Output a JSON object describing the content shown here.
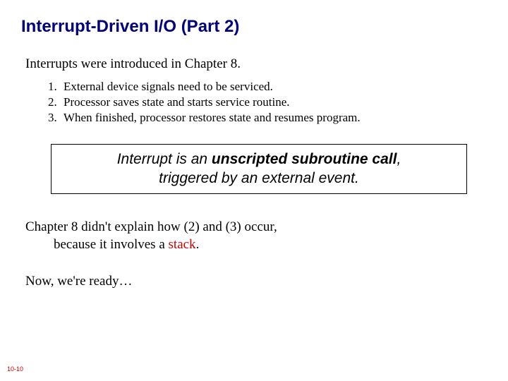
{
  "title": "Interrupt-Driven I/O (Part 2)",
  "intro": "Interrupts were introduced in Chapter 8.",
  "list": {
    "items": [
      {
        "num": "1.",
        "text": "External device signals need to be serviced."
      },
      {
        "num": "2.",
        "text": "Processor saves state and starts service routine."
      },
      {
        "num": "3.",
        "text": "When finished, processor restores state and resumes program."
      }
    ]
  },
  "callout": {
    "line1_pre": "Interrupt is an ",
    "line1_bold": "unscripted subroutine call",
    "line1_post": ",",
    "line2": "triggered by an external event."
  },
  "para1": {
    "line1": "Chapter 8 didn't explain how (2) and (3) occur,",
    "line2_pre": "because it involves a ",
    "line2_red": "stack",
    "line2_post": "."
  },
  "para2": "Now, we're ready…",
  "pageNumber": "10-10",
  "colors": {
    "title": "#000080",
    "body": "#000000",
    "accent": "#cc0000",
    "background": "#ffffff",
    "border": "#000000"
  }
}
